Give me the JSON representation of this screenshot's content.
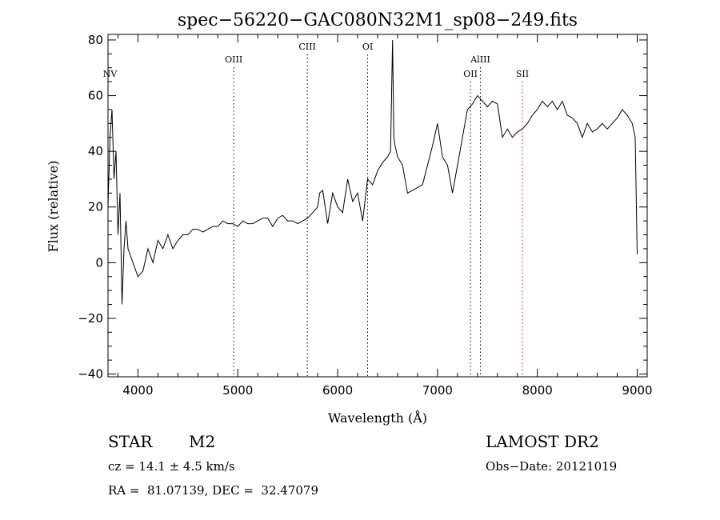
{
  "chart_data": {
    "type": "line",
    "title": "spec−56220−GAC080N32M1_sp08−249.fits",
    "xlabel": "Wavelength (Å)",
    "ylabel": "Flux (relative)",
    "xlim": [
      3700,
      9100
    ],
    "ylim": [
      -41,
      82
    ],
    "xticks": [
      4000,
      5000,
      6000,
      7000,
      8000,
      9000
    ],
    "yticks": [
      -40,
      -20,
      0,
      20,
      40,
      60,
      80
    ],
    "grid": false,
    "series": [
      {
        "x": [
          3700,
          3720,
          3740,
          3760,
          3780,
          3800,
          3820,
          3840,
          3860,
          3880,
          3900,
          3950,
          4000,
          4050,
          4100,
          4150,
          4200,
          4250,
          4300,
          4350,
          4400,
          4450,
          4500,
          4550,
          4600,
          4650,
          4700,
          4750,
          4800,
          4850,
          4900,
          4950,
          5000,
          5050,
          5100,
          5150,
          5200,
          5250,
          5300,
          5350,
          5400,
          5450,
          5500,
          5550,
          5600,
          5650,
          5700,
          5750,
          5800,
          5820,
          5850,
          5900,
          5950,
          6000,
          6050,
          6100,
          6150,
          6200,
          6250,
          6300,
          6350,
          6400,
          6450,
          6500,
          6530,
          6550,
          6563,
          6575,
          6600,
          6650,
          6700,
          6750,
          6800,
          6850,
          6900,
          6950,
          7000,
          7050,
          7100,
          7150,
          7200,
          7250,
          7300,
          7350,
          7400,
          7450,
          7500,
          7550,
          7600,
          7650,
          7700,
          7750,
          7800,
          7850,
          7900,
          7950,
          8000,
          8050,
          8100,
          8150,
          8200,
          8250,
          8300,
          8350,
          8400,
          8450,
          8500,
          8550,
          8600,
          8650,
          8700,
          8750,
          8800,
          8850,
          8900,
          8950,
          8980,
          9000
        ],
        "y": [
          20,
          45,
          55,
          30,
          40,
          10,
          25,
          -15,
          5,
          15,
          5,
          0,
          -5,
          -3,
          5,
          0,
          8,
          5,
          10,
          5,
          8,
          10,
          10,
          12,
          12,
          11,
          12,
          13,
          13,
          15,
          14,
          14,
          13,
          15,
          14,
          14,
          15,
          16,
          16,
          13,
          16,
          17,
          15,
          15,
          14,
          15,
          16,
          18,
          20,
          25,
          26,
          14,
          25,
          20,
          18,
          30,
          22,
          25,
          15,
          30,
          28,
          33,
          36,
          38,
          40,
          80,
          45,
          42,
          38,
          35,
          25,
          26,
          27,
          28,
          35,
          42,
          50,
          38,
          35,
          25,
          35,
          45,
          55,
          57,
          60,
          58,
          56,
          58,
          57,
          45,
          48,
          45,
          47,
          48,
          50,
          53,
          55,
          58,
          56,
          58,
          55,
          58,
          53,
          52,
          50,
          45,
          50,
          47,
          48,
          50,
          48,
          50,
          52,
          55,
          53,
          50,
          45,
          3
        ]
      }
    ],
    "line_markers": [
      {
        "label": "NV",
        "x": 3720,
        "color": "#000000"
      },
      {
        "label": "OIII",
        "x": 4959,
        "color": "#000000"
      },
      {
        "label": "CIII",
        "x": 5696,
        "color": "#000000"
      },
      {
        "label": "OI",
        "x": 6300,
        "color": "#000000"
      },
      {
        "label": "AlIII",
        "x": 7430,
        "color": "#000000"
      },
      {
        "label": "OII",
        "x": 7330,
        "color": "#000000"
      },
      {
        "label": "SII",
        "x": 7850,
        "color": "#ff0000"
      }
    ]
  },
  "info": {
    "object_type": "STAR",
    "subclass": "M2",
    "survey": "LAMOST DR2",
    "cz": "cz = 14.1 ± 4.5 km/s",
    "obs_date": "Obs−Date: 20121019",
    "coords": "RA =  81.07139, DEC =  32.47079"
  }
}
